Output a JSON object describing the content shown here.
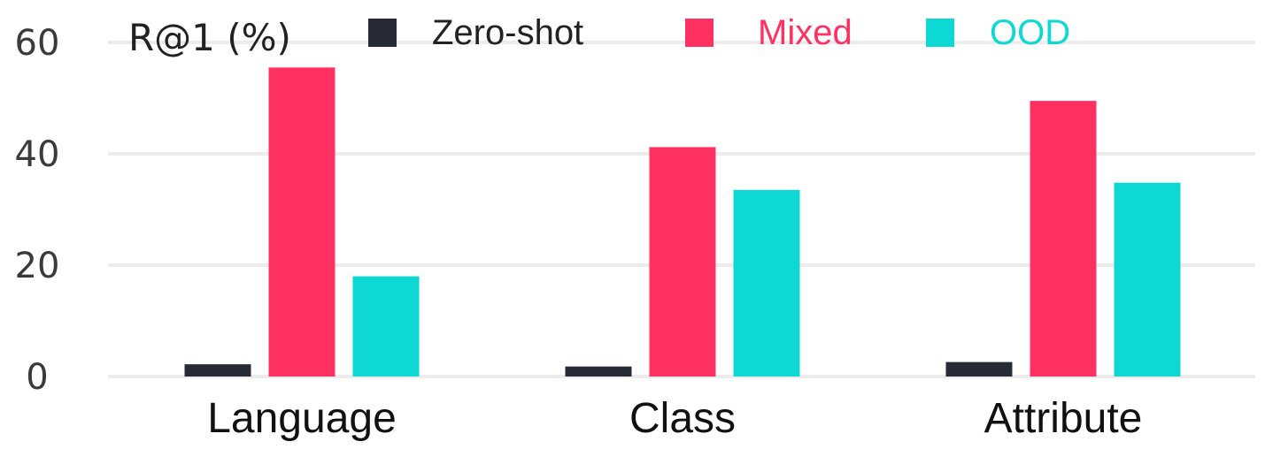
{
  "chart_data": {
    "type": "bar",
    "categories": [
      "Language",
      "Class",
      "Attribute"
    ],
    "series": [
      {
        "name": "Zero-shot",
        "values": [
          2.2,
          1.8,
          2.6
        ],
        "color": "#272b35"
      },
      {
        "name": "Mixed",
        "values": [
          55.5,
          41.2,
          49.5
        ],
        "color": "#ff3062"
      },
      {
        "name": "OOD",
        "values": [
          18.0,
          33.5,
          34.8
        ],
        "color": "#0dd8d4"
      }
    ],
    "ylabel": "R@1 (%)",
    "ylim": [
      0,
      60
    ],
    "yticks": [
      0,
      20,
      40,
      60
    ],
    "grid": true,
    "legend_position": "top"
  }
}
